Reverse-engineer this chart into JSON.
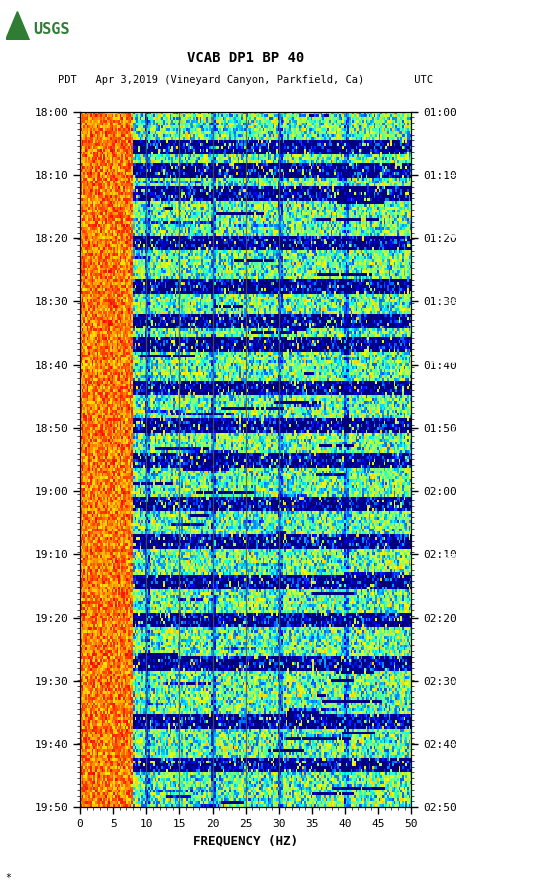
{
  "title_line1": "VCAB DP1 BP 40",
  "title_line2": "PDT   Apr 3,2019 (Vineyard Canyon, Parkfield, Ca)        UTC",
  "xlabel": "FREQUENCY (HZ)",
  "left_yticks": [
    "18:00",
    "18:10",
    "18:20",
    "18:30",
    "18:40",
    "18:50",
    "19:00",
    "19:10",
    "19:20",
    "19:30",
    "19:40",
    "19:50"
  ],
  "right_yticks": [
    "01:00",
    "01:10",
    "01:20",
    "01:30",
    "01:40",
    "01:50",
    "02:00",
    "02:10",
    "02:20",
    "02:30",
    "02:40",
    "02:50"
  ],
  "xticks": [
    0,
    5,
    10,
    15,
    20,
    25,
    30,
    35,
    40,
    45,
    50
  ],
  "xmin": 0,
  "xmax": 50,
  "freq_lines": [
    10,
    15,
    20,
    25,
    30
  ],
  "n_time": 240,
  "n_freq": 200,
  "seed": 42,
  "vmin": 0.45,
  "vmax": 0.95,
  "low_freq_cutoff": 8,
  "low_freq_value": 0.25
}
